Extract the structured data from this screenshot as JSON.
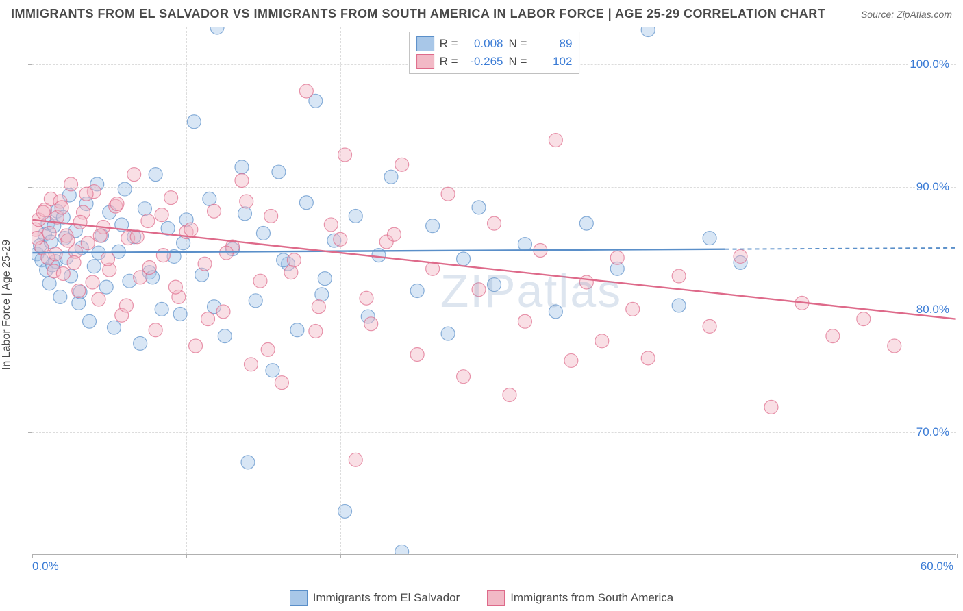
{
  "title": "IMMIGRANTS FROM EL SALVADOR VS IMMIGRANTS FROM SOUTH AMERICA IN LABOR FORCE | AGE 25-29 CORRELATION CHART",
  "source_label": "Source: ZipAtlas.com",
  "y_axis_label": "In Labor Force | Age 25-29",
  "watermark": "ZIPatlas",
  "chart": {
    "type": "scatter-with-regression",
    "xlim": [
      0,
      60
    ],
    "ylim": [
      60,
      103
    ],
    "x_tick_step": 10,
    "y_ticks": [
      70,
      80,
      90,
      100
    ],
    "y_tick_labels": [
      "70.0%",
      "80.0%",
      "90.0%",
      "100.0%"
    ],
    "x_left_label": "0.0%",
    "x_right_label": "60.0%",
    "background_color": "#ffffff",
    "grid_color": "#dcdcdc",
    "axis_color": "#b0b0b0",
    "marker_radius": 10,
    "marker_opacity": 0.45,
    "series": [
      {
        "name": "Immigrants from El Salvador",
        "color_fill": "#a8c7e8",
        "color_stroke": "#5a8fc9",
        "r_label": "R =",
        "r_value": "0.008",
        "n_label": "N =",
        "n_value": "89",
        "trend": {
          "x0": 0,
          "y0": 84.6,
          "x1": 45,
          "y1": 84.9,
          "dashed_extension_to": 60,
          "width": 2.4
        },
        "points": [
          [
            0.3,
            84.5
          ],
          [
            0.5,
            85.2
          ],
          [
            0.6,
            84.0
          ],
          [
            0.8,
            86.1
          ],
          [
            0.9,
            83.2
          ],
          [
            1.0,
            87.0
          ],
          [
            1.1,
            82.1
          ],
          [
            1.2,
            85.5
          ],
          [
            1.4,
            86.8
          ],
          [
            1.5,
            83.9
          ],
          [
            1.6,
            88.0
          ],
          [
            1.8,
            81.0
          ],
          [
            2.0,
            87.5
          ],
          [
            2.2,
            84.2
          ],
          [
            2.4,
            89.3
          ],
          [
            2.5,
            82.7
          ],
          [
            2.8,
            86.4
          ],
          [
            3.0,
            80.5
          ],
          [
            3.2,
            85.0
          ],
          [
            3.5,
            88.6
          ],
          [
            3.7,
            79.0
          ],
          [
            4.0,
            83.5
          ],
          [
            4.2,
            90.2
          ],
          [
            4.5,
            86.0
          ],
          [
            4.8,
            81.8
          ],
          [
            5.0,
            87.9
          ],
          [
            5.3,
            78.5
          ],
          [
            5.6,
            84.7
          ],
          [
            6.0,
            89.8
          ],
          [
            6.3,
            82.3
          ],
          [
            6.6,
            85.9
          ],
          [
            7.0,
            77.2
          ],
          [
            7.3,
            88.2
          ],
          [
            7.6,
            83.0
          ],
          [
            8.0,
            91.0
          ],
          [
            8.4,
            80.0
          ],
          [
            8.8,
            86.6
          ],
          [
            9.2,
            84.3
          ],
          [
            9.6,
            79.6
          ],
          [
            10.0,
            87.3
          ],
          [
            10.5,
            95.3
          ],
          [
            11.0,
            82.8
          ],
          [
            11.5,
            89.0
          ],
          [
            12.0,
            103.0
          ],
          [
            12.5,
            77.8
          ],
          [
            13.0,
            84.9
          ],
          [
            13.6,
            91.6
          ],
          [
            14.0,
            67.5
          ],
          [
            14.5,
            80.7
          ],
          [
            15.0,
            86.2
          ],
          [
            15.6,
            75.0
          ],
          [
            16.0,
            91.2
          ],
          [
            16.6,
            83.7
          ],
          [
            17.2,
            78.3
          ],
          [
            17.8,
            88.7
          ],
          [
            18.4,
            97.0
          ],
          [
            19.0,
            82.5
          ],
          [
            19.6,
            85.6
          ],
          [
            20.3,
            63.5
          ],
          [
            21.0,
            87.6
          ],
          [
            21.8,
            79.4
          ],
          [
            22.5,
            84.4
          ],
          [
            23.3,
            90.8
          ],
          [
            24.0,
            60.2
          ],
          [
            25.0,
            81.5
          ],
          [
            26.0,
            86.8
          ],
          [
            27.0,
            78.0
          ],
          [
            28.0,
            84.1
          ],
          [
            29.0,
            88.3
          ],
          [
            30.0,
            82.0
          ],
          [
            32.0,
            85.3
          ],
          [
            34.0,
            79.8
          ],
          [
            36.0,
            87.0
          ],
          [
            38.0,
            83.3
          ],
          [
            40.0,
            102.8
          ],
          [
            42.0,
            80.3
          ],
          [
            44.0,
            85.8
          ],
          [
            46.0,
            83.8
          ],
          [
            1.3,
            83.6
          ],
          [
            2.1,
            85.8
          ],
          [
            3.1,
            81.4
          ],
          [
            4.3,
            84.6
          ],
          [
            5.8,
            86.9
          ],
          [
            7.8,
            82.6
          ],
          [
            9.8,
            85.4
          ],
          [
            11.8,
            80.2
          ],
          [
            13.8,
            87.8
          ],
          [
            16.3,
            84.0
          ],
          [
            18.8,
            81.2
          ]
        ]
      },
      {
        "name": "Immigrants from South America",
        "color_fill": "#f2b9c6",
        "color_stroke": "#de6a8a",
        "r_label": "R =",
        "r_value": "-0.265",
        "n_label": "N =",
        "n_value": "102",
        "trend": {
          "x0": 0,
          "y0": 87.3,
          "x1": 60,
          "y1": 79.2,
          "width": 2.4
        },
        "points": [
          [
            0.2,
            86.5
          ],
          [
            0.4,
            87.3
          ],
          [
            0.6,
            85.0
          ],
          [
            0.8,
            88.1
          ],
          [
            1.0,
            84.2
          ],
          [
            1.2,
            89.0
          ],
          [
            1.4,
            83.1
          ],
          [
            1.6,
            87.5
          ],
          [
            1.8,
            88.8
          ],
          [
            2.0,
            82.9
          ],
          [
            2.2,
            86.0
          ],
          [
            2.5,
            90.2
          ],
          [
            2.8,
            84.7
          ],
          [
            3.0,
            81.5
          ],
          [
            3.3,
            87.9
          ],
          [
            3.6,
            85.4
          ],
          [
            4.0,
            89.6
          ],
          [
            4.3,
            80.8
          ],
          [
            4.6,
            86.7
          ],
          [
            5.0,
            83.2
          ],
          [
            5.4,
            88.4
          ],
          [
            5.8,
            79.5
          ],
          [
            6.2,
            85.8
          ],
          [
            6.6,
            91.0
          ],
          [
            7.0,
            82.6
          ],
          [
            7.5,
            87.2
          ],
          [
            8.0,
            78.3
          ],
          [
            8.5,
            84.4
          ],
          [
            9.0,
            89.1
          ],
          [
            9.5,
            81.0
          ],
          [
            10.0,
            86.3
          ],
          [
            10.6,
            77.0
          ],
          [
            11.2,
            83.7
          ],
          [
            11.8,
            88.0
          ],
          [
            12.4,
            79.8
          ],
          [
            13.0,
            85.1
          ],
          [
            13.6,
            90.5
          ],
          [
            14.2,
            75.5
          ],
          [
            14.8,
            82.3
          ],
          [
            15.5,
            87.6
          ],
          [
            16.2,
            74.0
          ],
          [
            17.0,
            84.0
          ],
          [
            17.8,
            97.8
          ],
          [
            18.6,
            80.2
          ],
          [
            19.4,
            86.9
          ],
          [
            20.3,
            92.6
          ],
          [
            21.0,
            67.7
          ],
          [
            22.0,
            78.8
          ],
          [
            23.0,
            85.5
          ],
          [
            24.0,
            91.8
          ],
          [
            25.0,
            76.3
          ],
          [
            26.0,
            83.3
          ],
          [
            27.0,
            89.4
          ],
          [
            28.0,
            74.5
          ],
          [
            29.0,
            81.6
          ],
          [
            30.0,
            87.0
          ],
          [
            31.0,
            73.0
          ],
          [
            32.0,
            79.0
          ],
          [
            33.0,
            84.8
          ],
          [
            34.0,
            93.8
          ],
          [
            35.0,
            75.8
          ],
          [
            36.0,
            82.2
          ],
          [
            37.0,
            77.4
          ],
          [
            38.0,
            84.2
          ],
          [
            39.0,
            80.0
          ],
          [
            40.0,
            76.0
          ],
          [
            42.0,
            82.7
          ],
          [
            44.0,
            78.6
          ],
          [
            46.0,
            84.3
          ],
          [
            48.0,
            72.0
          ],
          [
            50.0,
            80.5
          ],
          [
            52.0,
            77.8
          ],
          [
            54.0,
            79.2
          ],
          [
            56.0,
            77.0
          ],
          [
            0.3,
            85.8
          ],
          [
            0.7,
            87.9
          ],
          [
            1.1,
            86.2
          ],
          [
            1.5,
            84.5
          ],
          [
            1.9,
            88.3
          ],
          [
            2.3,
            85.6
          ],
          [
            2.7,
            83.8
          ],
          [
            3.1,
            87.1
          ],
          [
            3.5,
            89.4
          ],
          [
            3.9,
            82.2
          ],
          [
            4.4,
            86.0
          ],
          [
            4.9,
            84.1
          ],
          [
            5.5,
            88.6
          ],
          [
            6.1,
            80.3
          ],
          [
            6.8,
            85.9
          ],
          [
            7.6,
            83.4
          ],
          [
            8.4,
            87.7
          ],
          [
            9.3,
            81.8
          ],
          [
            10.3,
            86.5
          ],
          [
            11.4,
            79.2
          ],
          [
            12.6,
            84.6
          ],
          [
            13.9,
            88.8
          ],
          [
            15.3,
            76.7
          ],
          [
            16.8,
            83.0
          ],
          [
            18.4,
            78.2
          ],
          [
            20.0,
            85.7
          ],
          [
            21.7,
            80.9
          ],
          [
            23.5,
            86.1
          ]
        ]
      }
    ]
  },
  "bottom_legend": [
    "Immigrants from El Salvador",
    "Immigrants from South America"
  ]
}
